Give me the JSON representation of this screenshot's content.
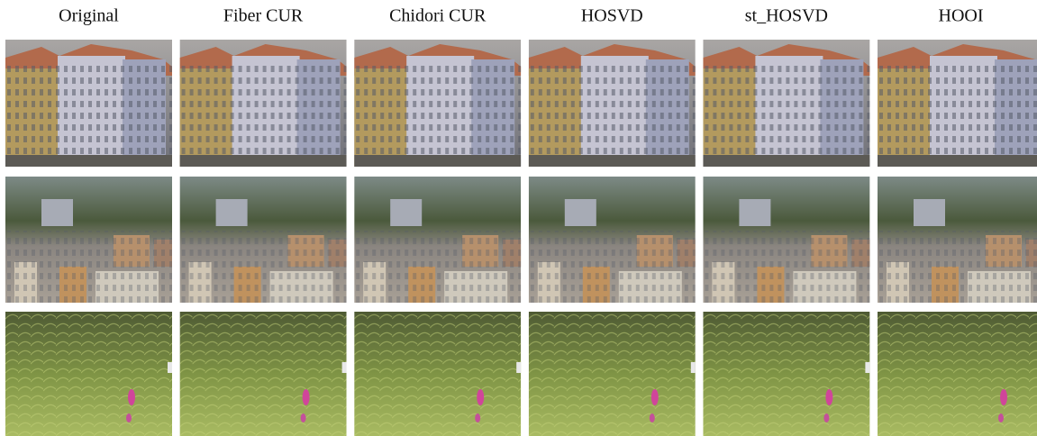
{
  "columns": [
    "Original",
    "Fiber CUR",
    "Chidori CUR",
    "HOSVD",
    "st_HOSVD",
    "HOOI"
  ]
}
